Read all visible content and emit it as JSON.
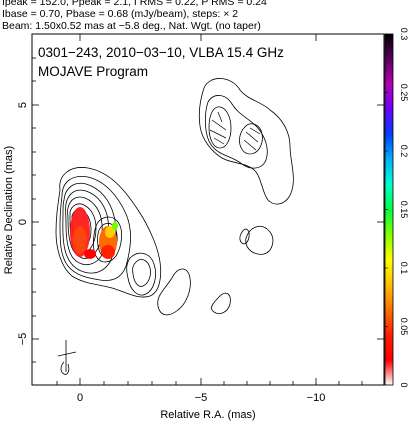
{
  "header": {
    "line1": "Ipeak = 152.0, Ppeak = 2.1, I RMS = 0.22, P RMS = 0.24",
    "line2": "Ibase = 0.70, Pbase = 0.68 (mJy/beam), steps: × 2",
    "line3": "Beam: 1.50x0.52 mas at −5.8 deg., Nat. Wgt. (no taper)"
  },
  "plot": {
    "title": "0301−243, 2010−03−10, VLBA 15.4 GHz",
    "subtitle": "MOJAVE Program",
    "xlabel": "Relative R.A. (mas)",
    "ylabel": "Relative Declination (mas)",
    "xticks": [
      "0",
      "−5",
      "−10"
    ],
    "yticks": [
      "5",
      "0",
      "−5"
    ]
  },
  "colorbar": {
    "ticks": [
      "0.3",
      "0.25",
      "0.2",
      "0.15",
      "0.1",
      "0.05",
      "0"
    ],
    "colors": [
      "#000000",
      "#5a0060",
      "#b400b4",
      "#6a00ff",
      "#0040ff",
      "#00b0ff",
      "#00ffd0",
      "#00ff40",
      "#80ff00",
      "#ffff00",
      "#ffc000",
      "#ff7000",
      "#ff2000",
      "#ff0000",
      "#ffffff"
    ]
  }
}
